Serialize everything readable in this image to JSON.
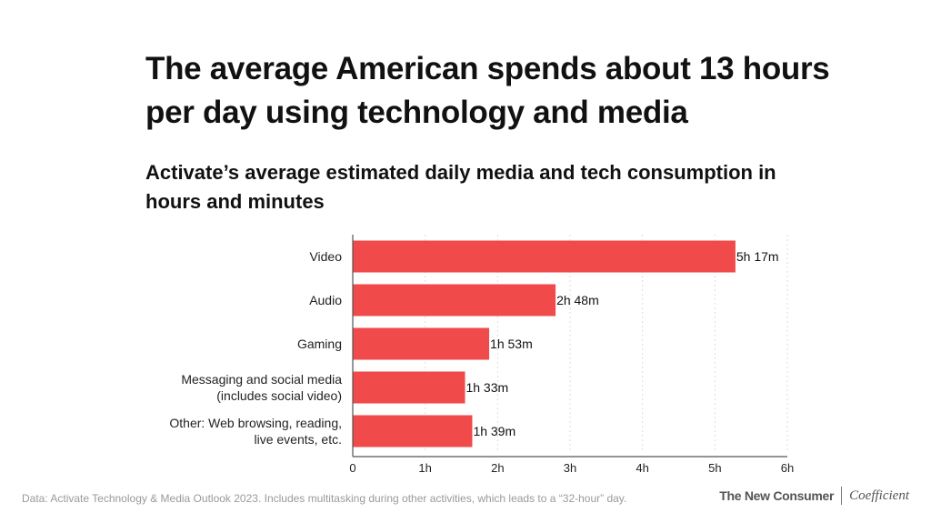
{
  "title": "The average American spends about 13 hours per day using technology and media",
  "subtitle": "Activate’s average estimated daily media and tech consumption in hours and minutes",
  "footer_note": "Data: Activate Technology & Media Outlook 2023. Includes multitasking during other activities, which leads to a “32-hour” day.",
  "brand": {
    "primary": "The New Consumer",
    "secondary": "Coefficient"
  },
  "colors": {
    "bar": "#f04a4a",
    "axis": "#555555",
    "grid": "#dddddd"
  },
  "chart_data": {
    "type": "bar",
    "orientation": "horizontal",
    "title": "Activate’s average estimated daily media and tech consumption in hours and minutes",
    "categories": [
      [
        "Video"
      ],
      [
        "Audio"
      ],
      [
        "Gaming"
      ],
      [
        "Messaging and social media",
        "(includes social video)"
      ],
      [
        "Other: Web browsing, reading,",
        "live events, etc."
      ]
    ],
    "values": [
      5.2833,
      2.8,
      1.8833,
      1.55,
      1.65
    ],
    "data_labels": [
      "5h 17m",
      "2h 48m",
      "1h 53m",
      "1h 33m",
      "1h 39m"
    ],
    "xlim": [
      0,
      6
    ],
    "xticks": [
      0,
      1,
      2,
      3,
      4,
      5,
      6
    ],
    "xtick_labels": [
      "0",
      "1h",
      "2h",
      "3h",
      "4h",
      "5h",
      "6h"
    ],
    "grid": true
  }
}
